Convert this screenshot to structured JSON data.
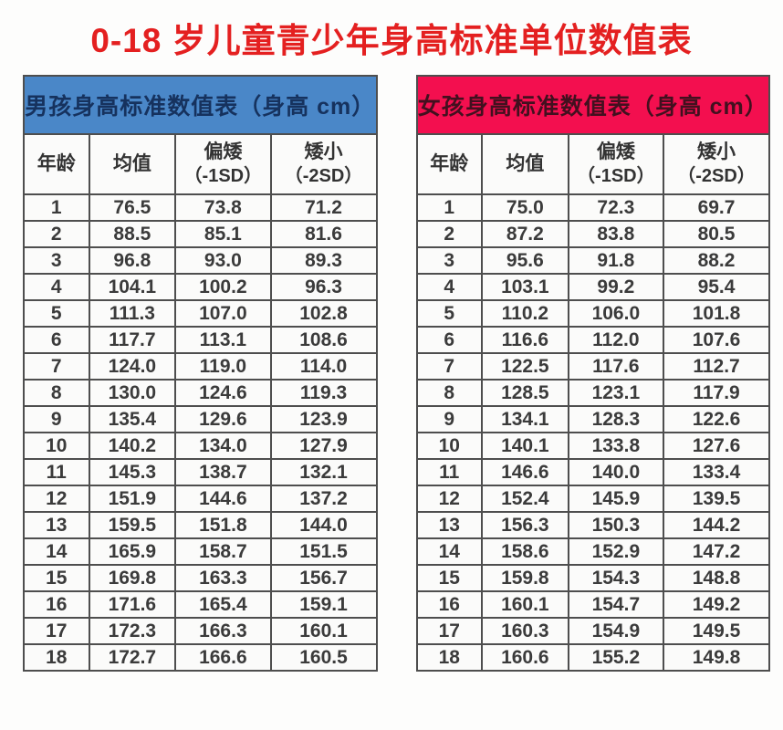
{
  "title": "0-18 岁儿童青少年身高标准单位数值表",
  "colors": {
    "title_red": "#e42020",
    "boys_header_bg": "#4a87c8",
    "girls_header_bg": "#f30f4f",
    "border": "#4e4e4e",
    "cell_text": "#3b3b3b"
  },
  "tables": [
    {
      "id": "boys",
      "header": "男孩身高标准数值表（身高 cm）",
      "columns": [
        {
          "label": "年龄",
          "sub": ""
        },
        {
          "label": "均值",
          "sub": ""
        },
        {
          "label": "偏矮",
          "sub": "（-1SD）"
        },
        {
          "label": "矮小",
          "sub": "（-2SD）"
        }
      ],
      "rows": [
        [
          "1",
          "76.5",
          "73.8",
          "71.2"
        ],
        [
          "2",
          "88.5",
          "85.1",
          "81.6"
        ],
        [
          "3",
          "96.8",
          "93.0",
          "89.3"
        ],
        [
          "4",
          "104.1",
          "100.2",
          "96.3"
        ],
        [
          "5",
          "111.3",
          "107.0",
          "102.8"
        ],
        [
          "6",
          "117.7",
          "113.1",
          "108.6"
        ],
        [
          "7",
          "124.0",
          "119.0",
          "114.0"
        ],
        [
          "8",
          "130.0",
          "124.6",
          "119.3"
        ],
        [
          "9",
          "135.4",
          "129.6",
          "123.9"
        ],
        [
          "10",
          "140.2",
          "134.0",
          "127.9"
        ],
        [
          "11",
          "145.3",
          "138.7",
          "132.1"
        ],
        [
          "12",
          "151.9",
          "144.6",
          "137.2"
        ],
        [
          "13",
          "159.5",
          "151.8",
          "144.0"
        ],
        [
          "14",
          "165.9",
          "158.7",
          "151.5"
        ],
        [
          "15",
          "169.8",
          "163.3",
          "156.7"
        ],
        [
          "16",
          "171.6",
          "165.4",
          "159.1"
        ],
        [
          "17",
          "172.3",
          "166.3",
          "160.1"
        ],
        [
          "18",
          "172.7",
          "166.6",
          "160.5"
        ]
      ]
    },
    {
      "id": "girls",
      "header": "女孩身高标准数值表（身高 cm）",
      "columns": [
        {
          "label": "年龄",
          "sub": ""
        },
        {
          "label": "均值",
          "sub": ""
        },
        {
          "label": "偏矮",
          "sub": "（-1SD）"
        },
        {
          "label": "矮小",
          "sub": "（-2SD）"
        }
      ],
      "rows": [
        [
          "1",
          "75.0",
          "72.3",
          "69.7"
        ],
        [
          "2",
          "87.2",
          "83.8",
          "80.5"
        ],
        [
          "3",
          "95.6",
          "91.8",
          "88.2"
        ],
        [
          "4",
          "103.1",
          "99.2",
          "95.4"
        ],
        [
          "5",
          "110.2",
          "106.0",
          "101.8"
        ],
        [
          "6",
          "116.6",
          "112.0",
          "107.6"
        ],
        [
          "7",
          "122.5",
          "117.6",
          "112.7"
        ],
        [
          "8",
          "128.5",
          "123.1",
          "117.9"
        ],
        [
          "9",
          "134.1",
          "128.3",
          "122.6"
        ],
        [
          "10",
          "140.1",
          "133.8",
          "127.6"
        ],
        [
          "11",
          "146.6",
          "140.0",
          "133.4"
        ],
        [
          "12",
          "152.4",
          "145.9",
          "139.5"
        ],
        [
          "13",
          "156.3",
          "150.3",
          "144.2"
        ],
        [
          "14",
          "158.6",
          "152.9",
          "147.2"
        ],
        [
          "15",
          "159.8",
          "154.3",
          "148.8"
        ],
        [
          "16",
          "160.1",
          "154.7",
          "149.2"
        ],
        [
          "17",
          "160.3",
          "154.9",
          "149.5"
        ],
        [
          "18",
          "160.6",
          "155.2",
          "149.8"
        ]
      ]
    }
  ],
  "cell_names": [
    "age-cell",
    "mean-cell",
    "minus-1sd-cell",
    "minus-2sd-cell"
  ]
}
